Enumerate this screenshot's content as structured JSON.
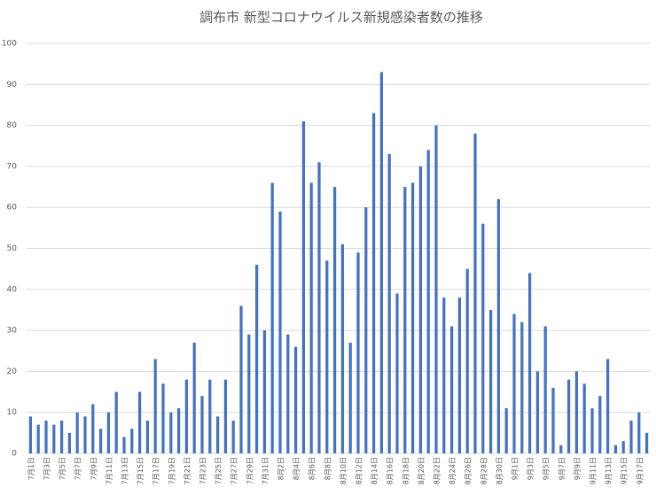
{
  "chart_data": {
    "type": "bar",
    "title": "調布市 新型コロナウイルス新規感染者数の推移",
    "categories": [
      "7月1日",
      null,
      "7月3日",
      null,
      "7月5日",
      null,
      "7月7日",
      null,
      "7月9日",
      null,
      "7月11日",
      null,
      "7月13日",
      null,
      "7月15日",
      null,
      "7月17日",
      null,
      "7月19日",
      null,
      "7月21日",
      null,
      "7月23日",
      null,
      "7月25日",
      null,
      "7月27日",
      null,
      "7月29日",
      null,
      "7月31日",
      null,
      "8月2日",
      null,
      "8月4日",
      null,
      "8月6日",
      null,
      "8月8日",
      null,
      "8月10日",
      null,
      "8月12日",
      null,
      "8月14日",
      null,
      "8月16日",
      null,
      "8月18日",
      null,
      "8月20日",
      null,
      "8月22日",
      null,
      "8月24日",
      null,
      "8月26日",
      null,
      "8月28日",
      null,
      "8月30日",
      null,
      "9月1日",
      null,
      "9月3日",
      null,
      "9月5日",
      null,
      "9月7日",
      null,
      "9月9日",
      null,
      "9月11日",
      null,
      "9月13日",
      null,
      "9月15日",
      null,
      "9月17日",
      null
    ],
    "values": [
      9,
      7,
      8,
      7,
      8,
      5,
      10,
      9,
      12,
      6,
      10,
      15,
      4,
      6,
      15,
      8,
      23,
      17,
      10,
      11,
      18,
      27,
      14,
      18,
      9,
      18,
      8,
      36,
      29,
      46,
      30,
      66,
      59,
      29,
      26,
      81,
      66,
      71,
      47,
      65,
      51,
      27,
      49,
      60,
      83,
      93,
      73,
      39,
      65,
      66,
      70,
      74,
      80,
      38,
      31,
      38,
      45,
      78,
      56,
      35,
      62,
      11,
      34,
      32,
      44,
      20,
      31,
      16,
      2,
      18,
      20,
      17,
      11,
      14,
      23,
      2,
      3,
      8,
      10,
      5
    ],
    "color": "#4472c4",
    "ylim": [
      0,
      100
    ],
    "yticks": [
      0,
      10,
      20,
      30,
      40,
      50,
      60,
      70,
      80,
      90,
      100
    ],
    "grid": true
  }
}
